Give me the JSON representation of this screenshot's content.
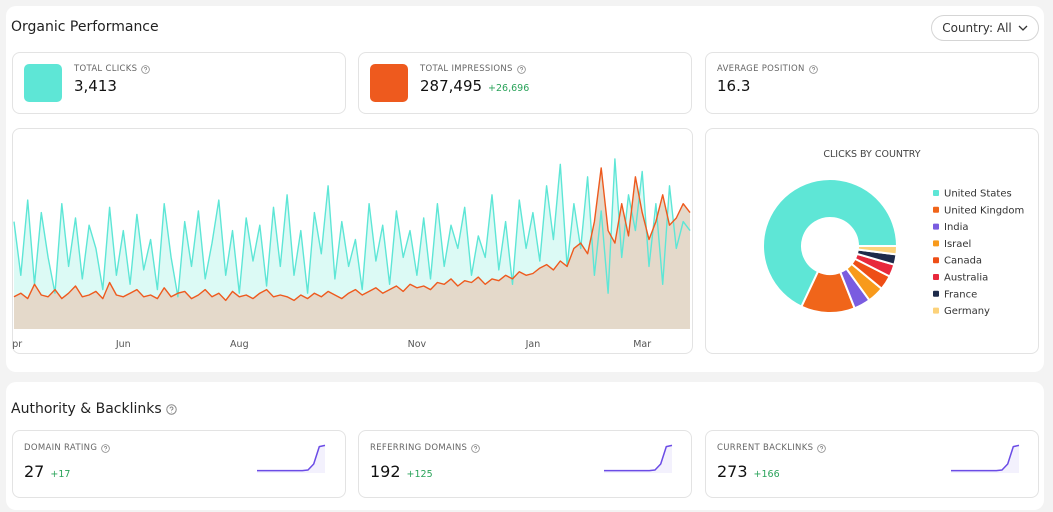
{
  "header": {
    "title": "Organic Performance",
    "filter": "Country: All"
  },
  "kpis": [
    {
      "label": "TOTAL CLICKS",
      "value": "3,413"
    },
    {
      "label": "TOTAL IMPRESSIONS",
      "value": "287,495",
      "change": "+26,696"
    },
    {
      "label": "AVERAGE POSITION",
      "value": "16.3"
    }
  ],
  "authority": {
    "title": "Authority & Backlinks",
    "cards": [
      {
        "label": "DOMAIN RATING",
        "value": "27",
        "change": "+17"
      },
      {
        "label": "REFERRING DOMAINS",
        "value": "192",
        "change": "+125"
      },
      {
        "label": "CURRENT BACKLINKS",
        "value": "273",
        "change": "+166"
      }
    ]
  },
  "chart_data": [
    {
      "type": "area",
      "xlim": [
        0,
        99
      ],
      "ylim": [
        0,
        100
      ],
      "xticks": [
        {
          "value": 0,
          "label": "Apr"
        },
        {
          "value": 16,
          "label": "Jun"
        },
        {
          "value": 33,
          "label": "Aug"
        },
        {
          "value": 59,
          "label": "Nov"
        },
        {
          "value": 76,
          "label": "Jan"
        },
        {
          "value": 92,
          "label": "Mar"
        }
      ],
      "series": [
        {
          "color": "#5ee6d6",
          "fill": "#dcfaf5",
          "values": [
            60,
            30,
            72,
            25,
            65,
            40,
            20,
            70,
            35,
            62,
            28,
            58,
            45,
            22,
            68,
            30,
            55,
            25,
            64,
            33,
            50,
            22,
            70,
            40,
            18,
            60,
            35,
            66,
            28,
            48,
            72,
            30,
            55,
            20,
            62,
            38,
            58,
            24,
            68,
            35,
            75,
            30,
            55,
            20,
            65,
            42,
            80,
            28,
            60,
            35,
            50,
            22,
            70,
            38,
            58,
            25,
            66,
            40,
            55,
            30,
            62,
            28,
            70,
            35,
            58,
            45,
            68,
            30,
            52,
            40,
            75,
            33,
            60,
            25,
            72,
            45,
            65,
            38,
            80,
            50,
            92,
            35,
            70,
            45,
            85,
            30,
            66,
            20,
            95,
            40,
            75,
            55,
            88,
            35,
            70,
            25,
            80,
            45,
            60,
            55
          ]
        },
        {
          "color": "#ee5a1e",
          "fill": "#e4d9ca",
          "values": [
            18,
            20,
            17,
            25,
            19,
            18,
            22,
            17,
            20,
            24,
            18,
            19,
            21,
            17,
            26,
            19,
            18,
            20,
            22,
            18,
            19,
            17,
            23,
            18,
            20,
            21,
            17,
            19,
            22,
            18,
            20,
            16,
            21,
            18,
            19,
            17,
            20,
            22,
            18,
            19,
            18,
            16,
            19,
            17,
            20,
            18,
            21,
            19,
            17,
            20,
            22,
            19,
            21,
            23,
            20,
            22,
            24,
            21,
            25,
            23,
            24,
            22,
            26,
            25,
            28,
            24,
            27,
            26,
            29,
            25,
            28,
            27,
            30,
            28,
            32,
            30,
            31,
            34,
            36,
            33,
            38,
            35,
            45,
            48,
            42,
            60,
            90,
            55,
            48,
            70,
            52,
            85,
            65,
            50,
            60,
            75,
            58,
            62,
            70,
            65
          ]
        }
      ]
    },
    {
      "type": "pie",
      "title": "CLICKS BY COUNTRY",
      "labels": [
        "United States",
        "United Kingdom",
        "India",
        "Israel",
        "Canada",
        "Australia",
        "France",
        "Germany"
      ],
      "values": [
        68,
        13,
        4,
        4,
        3.5,
        3,
        2.5,
        2
      ],
      "colors": [
        "#5ee6d6",
        "#f0651a",
        "#7a5ce0",
        "#f89a1c",
        "#ee4e16",
        "#e8283c",
        "#1d2a4a",
        "#fcd27a"
      ]
    },
    {
      "type": "line",
      "ylim": [
        0,
        100
      ],
      "color": "#6b4ce6",
      "values": [
        8,
        8,
        8,
        8,
        8,
        8,
        8,
        8,
        8,
        10,
        30,
        88,
        92
      ]
    },
    {
      "type": "line",
      "ylim": [
        0,
        100
      ],
      "color": "#6b4ce6",
      "values": [
        8,
        8,
        8,
        8,
        8,
        8,
        8,
        8,
        8,
        10,
        30,
        88,
        92
      ]
    },
    {
      "type": "line",
      "ylim": [
        0,
        100
      ],
      "color": "#6b4ce6",
      "values": [
        8,
        8,
        8,
        8,
        8,
        8,
        8,
        8,
        8,
        10,
        30,
        88,
        92
      ]
    }
  ]
}
